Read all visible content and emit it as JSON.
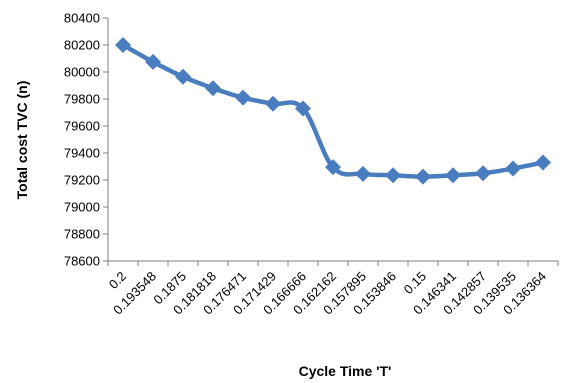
{
  "chart_data": {
    "type": "line",
    "title": "",
    "xlabel": "Cycle Time 'T'",
    "ylabel": "Total cost TVC (n)",
    "categories": [
      "0.2",
      "0.193548",
      "0.1875",
      "0.181818",
      "0.176471",
      "0.171429",
      "0.166666",
      "0.162162",
      "0.157895",
      "0.153846",
      "0.15",
      "0.146341",
      "0.142857",
      "0.139535",
      "0.136364"
    ],
    "series": [
      {
        "values": [
          80200,
          80075,
          79965,
          79880,
          79810,
          79765,
          79730,
          79295,
          79245,
          79235,
          79225,
          79235,
          79250,
          79285,
          79330
        ]
      }
    ],
    "yticks": [
      78600,
      78800,
      79000,
      79200,
      79400,
      79600,
      79800,
      80000,
      80200,
      80400
    ],
    "ylim": [
      78600,
      80400
    ],
    "grid": false,
    "legend": "none",
    "colors": {
      "line": "#4a7dbf",
      "marker": "#4a7dbf"
    },
    "marker": "diamond"
  }
}
